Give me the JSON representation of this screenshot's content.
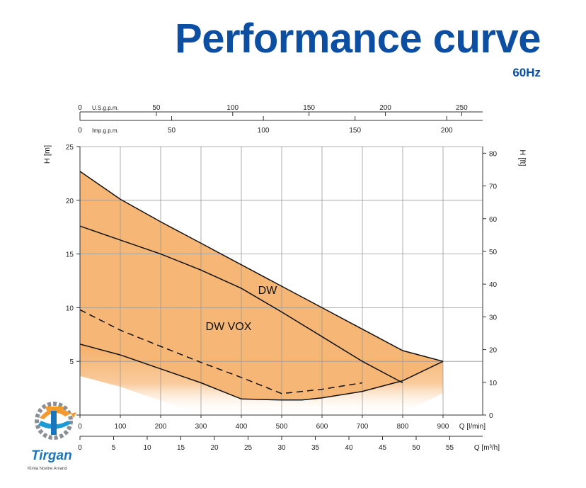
{
  "title": "Performance curve",
  "subtitle": "60Hz",
  "logo": {
    "name": "Tirgan",
    "tagline": "Kimia Novine Arvand"
  },
  "chart_data": {
    "type": "line",
    "xlabel": "Q [l/min]",
    "ylabel": "H [m]",
    "ylabel_right": "H [ft]",
    "xlim": [
      0,
      1000
    ],
    "ylim": [
      0,
      25
    ],
    "grid": true,
    "x_ticks": [
      0,
      100,
      200,
      300,
      400,
      500,
      600,
      700,
      800,
      900
    ],
    "y_ticks": [
      0,
      5,
      10,
      15,
      20,
      25
    ],
    "y_ticks_labels": [
      "",
      "5",
      "10",
      "15",
      "20",
      "25"
    ],
    "right_axis": {
      "label": "H [ft]",
      "ticks": [
        0,
        10,
        20,
        30,
        40,
        50,
        60,
        70,
        80
      ]
    },
    "secondary_x_axes": [
      {
        "label": "Q [m³/h]",
        "ticks": [
          0,
          5,
          10,
          15,
          20,
          25,
          30,
          35,
          40,
          45,
          50,
          55
        ]
      },
      {
        "label": "U.S.g.p.m.",
        "ticks": [
          0,
          50,
          100,
          150,
          200,
          250
        ]
      },
      {
        "label": "Imp.g.p.m.",
        "ticks": [
          0,
          50,
          100,
          150,
          200
        ]
      }
    ],
    "annotations": [
      "DW",
      "DW VOX"
    ],
    "fill_color": "#f5ae67",
    "series": [
      {
        "name": "DW",
        "kind": "envelope",
        "x": [
          0,
          100,
          200,
          300,
          400,
          500,
          600,
          700,
          800,
          900
        ],
        "y": [
          22.7,
          20.1,
          18.0,
          16.0,
          14.0,
          12.0,
          10.0,
          8.0,
          6.0,
          5.0
        ]
      },
      {
        "name": "DW",
        "kind": "curve",
        "x": [
          0,
          100,
          200,
          300,
          400,
          500,
          600,
          700,
          800
        ],
        "y": [
          17.6,
          16.3,
          15.0,
          13.5,
          11.8,
          9.6,
          7.3,
          5.0,
          3.0
        ]
      },
      {
        "name": "DW VOX",
        "kind": "dashed",
        "x": [
          0,
          100,
          200,
          300,
          400,
          500,
          600,
          700
        ],
        "y": [
          9.8,
          7.9,
          6.4,
          4.9,
          3.5,
          2.0,
          2.4,
          3.0
        ]
      },
      {
        "name": "DW VOX",
        "kind": "lower",
        "x": [
          0,
          100,
          200,
          300,
          400,
          500,
          550,
          600,
          700,
          800,
          900
        ],
        "y": [
          6.6,
          5.6,
          4.3,
          3.0,
          1.5,
          1.4,
          1.4,
          1.6,
          2.2,
          3.2,
          5.0
        ]
      }
    ]
  }
}
